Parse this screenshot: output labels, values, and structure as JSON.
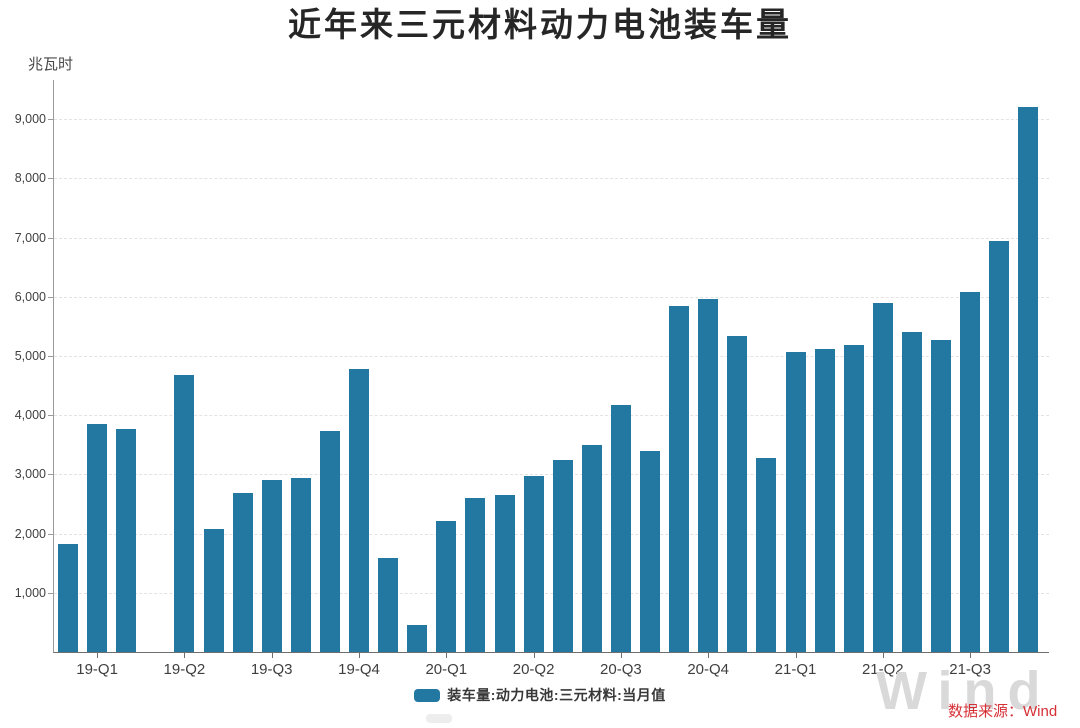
{
  "title": "近年来三元材料动力电池装车量",
  "y_axis_unit": "兆瓦时",
  "legend": {
    "label": "装车量:动力电池:三元材料:当月值"
  },
  "source_note": "数据来源：Wind",
  "watermark_text": "Wind",
  "colors": {
    "bar": "#2278a1",
    "source_text": "#d63036",
    "watermark": "#d9d9d9"
  },
  "chart_data": {
    "type": "bar",
    "title": "近年来三元材料动力电池装车量",
    "ylabel": "兆瓦时",
    "unit": "兆瓦时 (MWh)",
    "ylim": [
      0,
      9660
    ],
    "grid": "horizontal-dashed",
    "legend_position": "bottom-center",
    "legend_entries": [
      "装车量:动力电池:三元材料:当月值"
    ],
    "note": "monthly bars Feb-2019 to Nov-2021; slot index 3 has no bar (missing month)",
    "values": [
      1830,
      3860,
      3760,
      null,
      4680,
      2070,
      2680,
      2900,
      2940,
      3730,
      4780,
      1580,
      460,
      2210,
      2610,
      2660,
      2970,
      3240,
      3490,
      4180,
      3390,
      5850,
      5970,
      5340,
      3280,
      5060,
      5120,
      5180,
      5890,
      5410,
      5270,
      6080,
      6950,
      9210
    ],
    "x_ticks": [
      {
        "index": 1,
        "label": "19-Q1"
      },
      {
        "index": 4,
        "label": "19-Q2"
      },
      {
        "index": 7,
        "label": "19-Q3"
      },
      {
        "index": 10,
        "label": "19-Q4"
      },
      {
        "index": 13,
        "label": "20-Q1"
      },
      {
        "index": 16,
        "label": "20-Q2"
      },
      {
        "index": 19,
        "label": "20-Q3"
      },
      {
        "index": 22,
        "label": "20-Q4"
      },
      {
        "index": 25,
        "label": "21-Q1"
      },
      {
        "index": 28,
        "label": "21-Q2"
      },
      {
        "index": 31,
        "label": "21-Q3"
      }
    ],
    "y_ticks": [
      1000,
      2000,
      3000,
      4000,
      5000,
      6000,
      7000,
      8000,
      9000
    ],
    "y_tick_labels": [
      "1,000",
      "2,000",
      "3,000",
      "4,000",
      "5,000",
      "6,000",
      "7,000",
      "8,000",
      "9,000"
    ]
  }
}
